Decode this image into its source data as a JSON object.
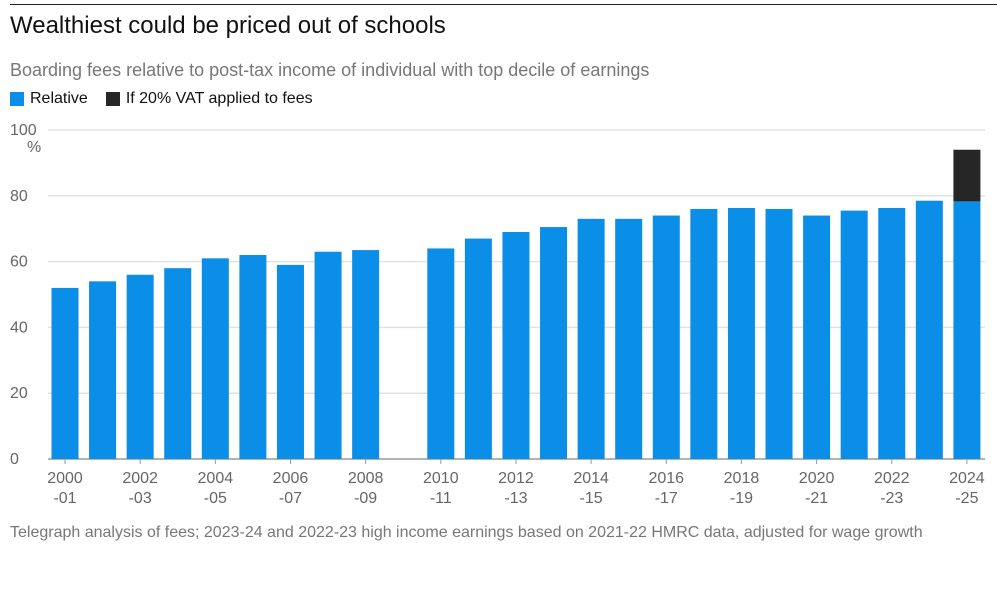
{
  "title": "Wealthiest could be priced out of schools",
  "subtitle": "Boarding fees relative to post-tax income of individual with top decile of earnings",
  "footer": "Telegraph analysis of fees; 2023-24 and 2022-23 high income earnings based on 2021-22 HMRC data, adjusted for wage growth",
  "chart_data": {
    "type": "bar",
    "stacked": true,
    "categories": [
      "2000-01",
      "2001-02",
      "2002-03",
      "2003-04",
      "2004-05",
      "2005-06",
      "2006-07",
      "2007-08",
      "2008-09",
      "2009-10",
      "2010-11",
      "2011-12",
      "2012-13",
      "2013-14",
      "2014-15",
      "2015-16",
      "2016-17",
      "2017-18",
      "2018-19",
      "2019-20",
      "2020-21",
      "2021-22",
      "2022-23",
      "2023-24",
      "2024-25"
    ],
    "x_tick_labels": [
      [
        "2000",
        "-01"
      ],
      [
        "2002",
        "-03"
      ],
      [
        "2004",
        "-05"
      ],
      [
        "2006",
        "-07"
      ],
      [
        "2008",
        "-09"
      ],
      [
        "2010",
        "-11"
      ],
      [
        "2012",
        "-13"
      ],
      [
        "2014",
        "-15"
      ],
      [
        "2016",
        "-17"
      ],
      [
        "2018",
        "-19"
      ],
      [
        "2020",
        "-21"
      ],
      [
        "2022",
        "-23"
      ],
      [
        "2024",
        "-25"
      ]
    ],
    "x_tick_categories": [
      "2000-01",
      "2002-03",
      "2004-05",
      "2006-07",
      "2008-09",
      "2010-11",
      "2012-13",
      "2014-15",
      "2016-17",
      "2018-19",
      "2020-21",
      "2022-23",
      "2024-25"
    ],
    "series": [
      {
        "name": "Relative",
        "color": "#0a8ee8",
        "values": [
          52,
          54,
          56,
          58,
          61,
          62,
          59,
          63,
          63.5,
          null,
          64,
          67,
          69,
          70.5,
          73,
          73,
          74,
          76,
          76.3,
          76,
          74,
          75.5,
          76.3,
          78.5,
          78.3
        ]
      },
      {
        "name": "If 20% VAT applied to fees",
        "color": "#262626",
        "values": [
          null,
          null,
          null,
          null,
          null,
          null,
          null,
          null,
          null,
          null,
          null,
          null,
          null,
          null,
          null,
          null,
          null,
          null,
          null,
          null,
          null,
          null,
          null,
          null,
          15.7
        ]
      }
    ],
    "ylim": [
      0,
      100
    ],
    "yticks": [
      0,
      20,
      40,
      60,
      80,
      100
    ],
    "yunit": "%",
    "grid": true,
    "legend": "top-left"
  }
}
